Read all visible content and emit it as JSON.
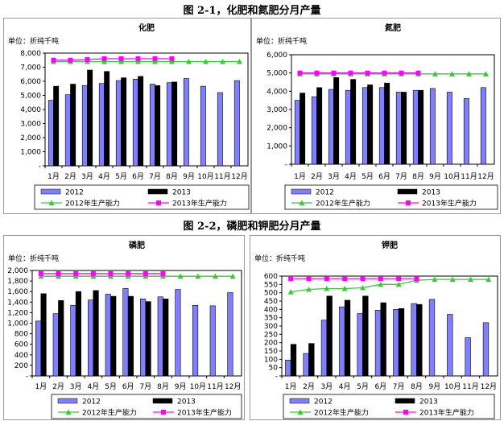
{
  "figures": [
    {
      "title": "图 2-1，化肥和氮肥分月产量"
    },
    {
      "title": "图 2-2，磷肥和钾肥分月产量"
    }
  ],
  "chart_data": [
    {
      "type": "bar",
      "title": "化肥",
      "unit_label": "单位：折纯千吨",
      "categories": [
        "1月",
        "2月",
        "3月",
        "4月",
        "5月",
        "6月",
        "7月",
        "8月",
        "9月",
        "10月",
        "11月",
        "12月"
      ],
      "ylim": [
        0,
        8000
      ],
      "yticks": [
        "-",
        "1,000",
        "2,000",
        "3,000",
        "4,000",
        "5,000",
        "6,000",
        "7,000",
        "8,000"
      ],
      "grid": false,
      "legend_placement": "bottom",
      "series": [
        {
          "name": "2012",
          "kind": "bar",
          "color": "#8080ff",
          "values": [
            4650,
            5050,
            5700,
            5850,
            6050,
            6150,
            5800,
            5900,
            6200,
            5650,
            5200,
            6050
          ]
        },
        {
          "name": "2013",
          "kind": "bar",
          "color": "#000000",
          "values": [
            5650,
            5800,
            6800,
            6700,
            6250,
            6350,
            5700,
            5950,
            null,
            null,
            null,
            null
          ]
        },
        {
          "name": "2012年生产能力",
          "kind": "line",
          "marker": "triangle",
          "color": "#33cc33",
          "values": [
            7400,
            7400,
            7400,
            7400,
            7400,
            7400,
            7400,
            7400,
            7400,
            7400,
            7400,
            7400
          ]
        },
        {
          "name": "2013年生产能力",
          "kind": "line",
          "marker": "square",
          "color": "#ff00ff",
          "values": [
            7500,
            7500,
            7550,
            7600,
            7600,
            7600,
            7600,
            7600,
            null,
            null,
            null,
            null
          ]
        }
      ]
    },
    {
      "type": "bar",
      "title": "氮肥",
      "unit_label": "单位：折纯千吨",
      "categories": [
        "1月",
        "2月",
        "3月",
        "4月",
        "5月",
        "6月",
        "7月",
        "8月",
        "9月",
        "10月",
        "11月",
        "12月"
      ],
      "ylim": [
        0,
        6000
      ],
      "yticks": [
        "-",
        "1,000",
        "2,000",
        "3,000",
        "4,000",
        "5,000",
        "6,000"
      ],
      "grid": false,
      "legend_placement": "bottom",
      "series": [
        {
          "name": "2012",
          "kind": "bar",
          "color": "#8080ff",
          "values": [
            3500,
            3700,
            4100,
            4050,
            4200,
            4200,
            3950,
            4050,
            4150,
            3950,
            3600,
            4200
          ]
        },
        {
          "name": "2013",
          "kind": "bar",
          "color": "#000000",
          "values": [
            3900,
            4200,
            4750,
            4650,
            4350,
            4450,
            3950,
            4050,
            null,
            null,
            null,
            null
          ]
        },
        {
          "name": "2012年生产能力",
          "kind": "line",
          "marker": "triangle",
          "color": "#33cc33",
          "values": [
            4950,
            4950,
            4950,
            4950,
            4950,
            4950,
            4950,
            4950,
            4950,
            4950,
            4950,
            4950
          ]
        },
        {
          "name": "2013年生产能力",
          "kind": "line",
          "marker": "square",
          "color": "#ff00ff",
          "values": [
            5000,
            5000,
            5000,
            5000,
            5000,
            5000,
            5000,
            5000,
            null,
            null,
            null,
            null
          ]
        }
      ]
    },
    {
      "type": "bar",
      "title": "磷肥",
      "unit_label": "单位：折纯千吨",
      "categories": [
        "1月",
        "2月",
        "3月",
        "4月",
        "5月",
        "6月",
        "7月",
        "8月",
        "9月",
        "10月",
        "11月",
        "12月"
      ],
      "ylim": [
        0,
        2000
      ],
      "yticks": [
        "-",
        "200",
        "400",
        "600",
        "800",
        "1,000",
        "1,200",
        "1,400",
        "1,600",
        "1,800",
        "2,000"
      ],
      "grid": false,
      "legend_placement": "bottom",
      "series": [
        {
          "name": "2012",
          "kind": "bar",
          "color": "#8080ff",
          "values": [
            1040,
            1180,
            1340,
            1440,
            1550,
            1660,
            1460,
            1500,
            1640,
            1340,
            1330,
            1580
          ]
        },
        {
          "name": "2013",
          "kind": "bar",
          "color": "#000000",
          "values": [
            1560,
            1430,
            1600,
            1620,
            1510,
            1510,
            1410,
            1460,
            null,
            null,
            null,
            null
          ]
        },
        {
          "name": "2012年生产能力",
          "kind": "line",
          "marker": "triangle",
          "color": "#33cc33",
          "values": [
            1890,
            1890,
            1890,
            1890,
            1890,
            1890,
            1890,
            1890,
            1890,
            1890,
            1890,
            1890
          ]
        },
        {
          "name": "2013年生产能力",
          "kind": "line",
          "marker": "square",
          "color": "#ff00ff",
          "values": [
            1940,
            1940,
            1940,
            1940,
            1940,
            1940,
            1940,
            1940,
            null,
            null,
            null,
            null
          ]
        }
      ]
    },
    {
      "type": "bar",
      "title": "钾肥",
      "unit_label": "单位：折纯千吨",
      "categories": [
        "1月",
        "2月",
        "3月",
        "4月",
        "5月",
        "6月",
        "7月",
        "8月",
        "9月",
        "10月",
        "11月",
        "12月"
      ],
      "ylim": [
        0,
        600
      ],
      "yticks": [
        "-",
        "50",
        "100",
        "150",
        "200",
        "250",
        "300",
        "350",
        "400",
        "450",
        "500",
        "550",
        "600"
      ],
      "grid": false,
      "legend_placement": "bottom",
      "series": [
        {
          "name": "2012",
          "kind": "bar",
          "color": "#8080ff",
          "values": [
            95,
            135,
            335,
            415,
            375,
            395,
            400,
            435,
            460,
            370,
            230,
            320
          ]
        },
        {
          "name": "2013",
          "kind": "bar",
          "color": "#000000",
          "values": [
            190,
            195,
            480,
            455,
            480,
            440,
            405,
            430,
            null,
            null,
            null,
            null
          ]
        },
        {
          "name": "2012年生产能力",
          "kind": "line",
          "marker": "triangle",
          "color": "#33cc33",
          "values": [
            505,
            520,
            525,
            525,
            530,
            550,
            550,
            575,
            580,
            580,
            580,
            580
          ]
        },
        {
          "name": "2013年生产能力",
          "kind": "line",
          "marker": "square",
          "color": "#ff00ff",
          "values": [
            585,
            585,
            585,
            585,
            585,
            585,
            585,
            585,
            null,
            null,
            null,
            null
          ]
        }
      ]
    }
  ]
}
